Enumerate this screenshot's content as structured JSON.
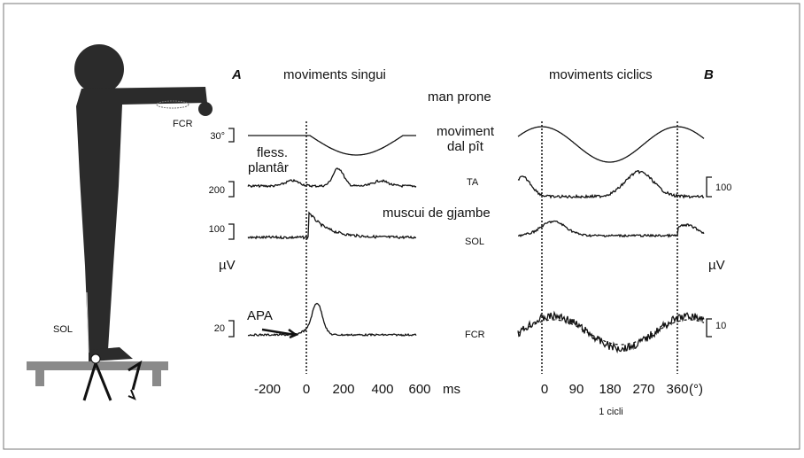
{
  "figure": {
    "panel_a": {
      "letter": "A",
      "title": "moviments singui"
    },
    "panel_b": {
      "letter": "B",
      "title": "moviments ciclics"
    },
    "body_labels": {
      "arm_muscle": "FCR",
      "leg_muscle": "SOL"
    },
    "trace_labels": {
      "hand": "man prone",
      "movement_line1": "moviment",
      "movement_line2": "dal pît",
      "ta": "TA",
      "leg_muscles": "muscui de gjambe",
      "sol": "SOL",
      "fcr": "FCR",
      "flexion_line1": "fless.",
      "flexion_line2": "plantâr",
      "apa": "APA"
    },
    "scale_a": {
      "angle": "30°",
      "ta": "200",
      "sol": "100",
      "unit": "µV",
      "fcr": "20"
    },
    "scale_b": {
      "ta": "100",
      "unit": "µV",
      "fcr": "10"
    },
    "axis_a": {
      "ticks": [
        "-200",
        "0",
        "200",
        "400",
        "600"
      ],
      "unit": "ms"
    },
    "axis_b": {
      "ticks": [
        "0",
        "90",
        "180",
        "270",
        "360"
      ],
      "unit": "(°)",
      "caption": "1 cicli"
    }
  }
}
